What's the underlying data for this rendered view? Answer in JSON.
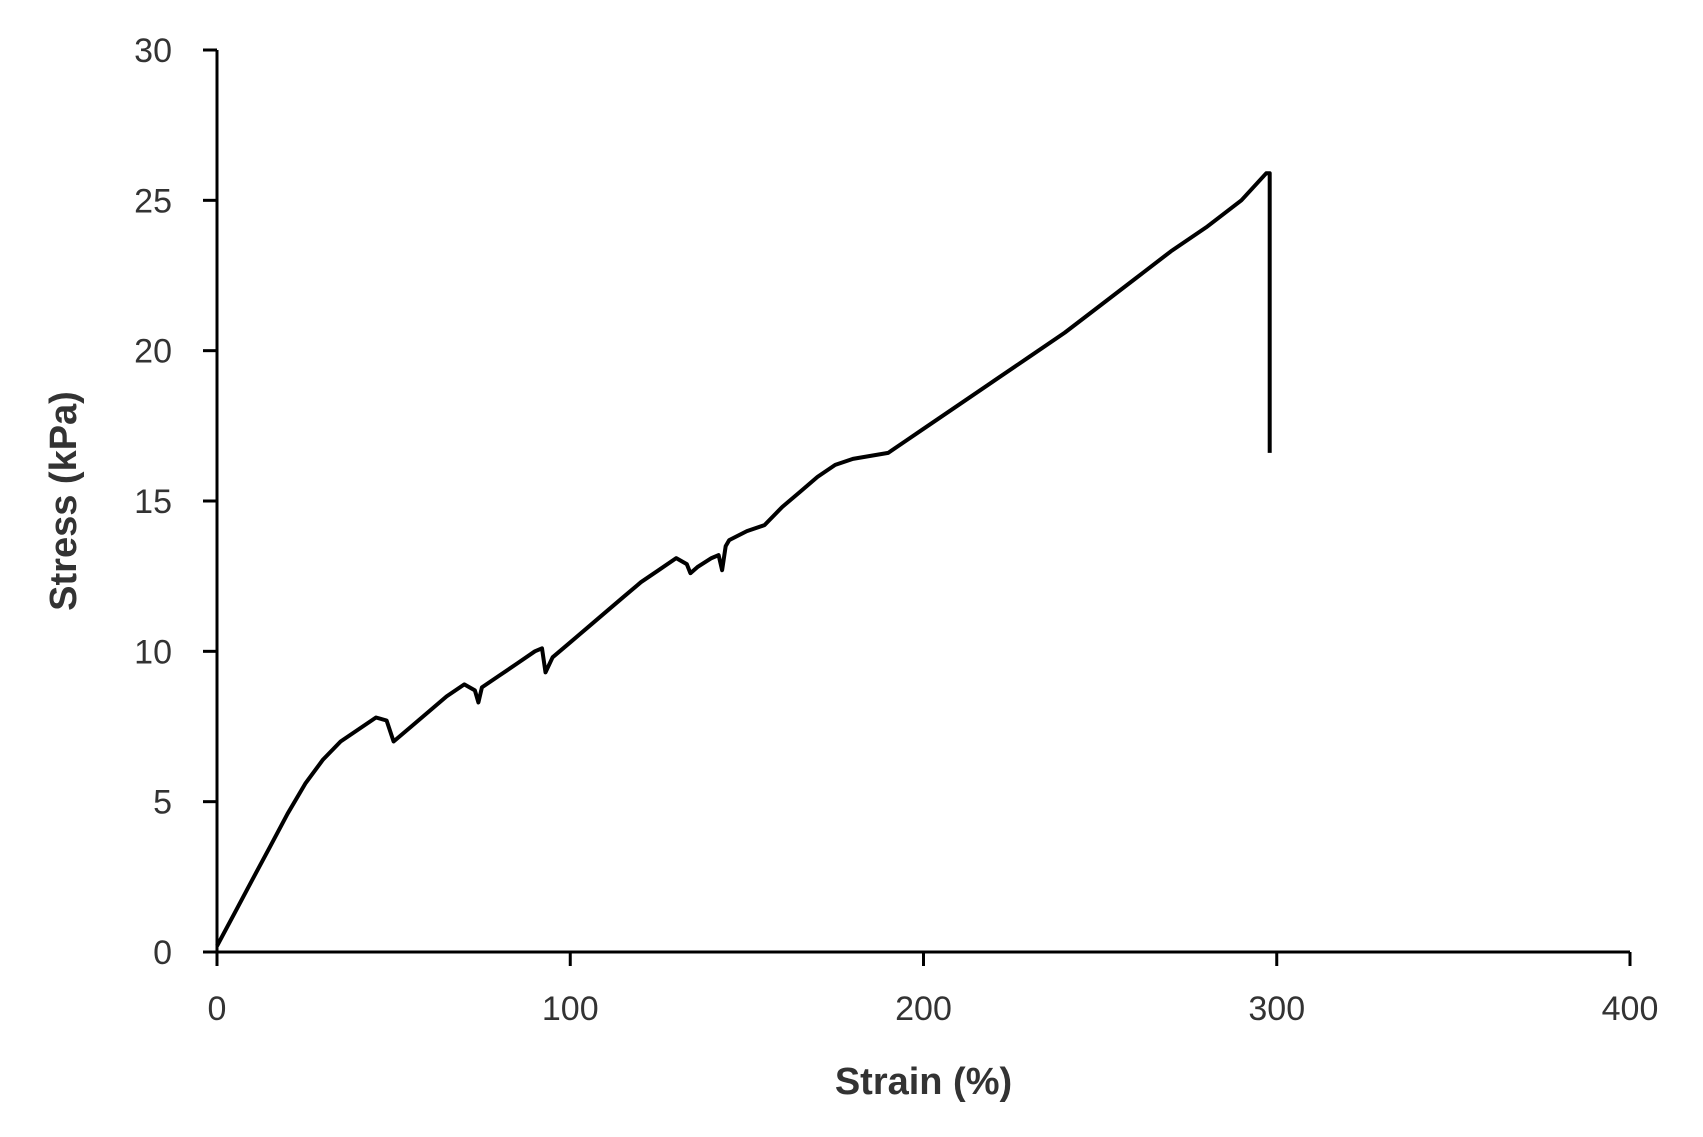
{
  "chart_data": {
    "type": "line",
    "xlabel": "Strain (%)",
    "ylabel": "Stress (kPa)",
    "xlim": [
      0,
      400
    ],
    "ylim": [
      0,
      30
    ],
    "xticks": [
      0,
      100,
      200,
      300,
      400
    ],
    "yticks": [
      0,
      5,
      10,
      15,
      20,
      25,
      30
    ],
    "grid": false,
    "legend": "none",
    "series": [
      {
        "x": [
          0,
          5,
          10,
          15,
          20,
          25,
          30,
          35,
          40,
          45,
          48,
          50,
          55,
          60,
          65,
          70,
          73,
          74,
          75,
          80,
          85,
          90,
          92,
          93,
          95,
          100,
          105,
          110,
          115,
          120,
          125,
          130,
          133,
          134,
          136,
          140,
          142,
          143,
          144,
          145,
          150,
          155,
          160,
          165,
          170,
          175,
          180,
          185,
          190,
          195,
          200,
          210,
          220,
          230,
          240,
          250,
          260,
          270,
          280,
          290,
          297,
          298,
          298
        ],
        "values": [
          0.2,
          1.3,
          2.4,
          3.5,
          4.6,
          5.6,
          6.4,
          7.0,
          7.4,
          7.8,
          7.7,
          7.0,
          7.5,
          8.0,
          8.5,
          8.9,
          8.7,
          8.3,
          8.8,
          9.2,
          9.6,
          10.0,
          10.1,
          9.3,
          9.8,
          10.3,
          10.8,
          11.3,
          11.8,
          12.3,
          12.7,
          13.1,
          12.9,
          12.6,
          12.8,
          13.1,
          13.2,
          12.7,
          13.5,
          13.7,
          14.0,
          14.2,
          14.8,
          15.3,
          15.8,
          16.2,
          16.4,
          16.5,
          16.6,
          17.0,
          17.4,
          18.2,
          19.0,
          19.8,
          20.6,
          21.5,
          22.4,
          23.3,
          24.1,
          25.0,
          25.9,
          25.9,
          16.6
        ]
      }
    ]
  }
}
